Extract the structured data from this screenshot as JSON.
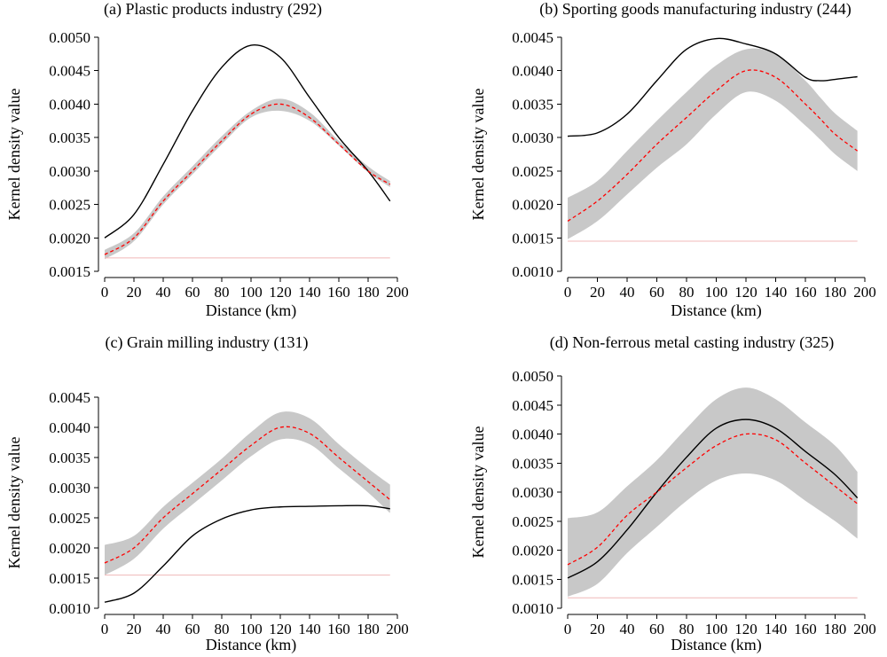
{
  "chart_data": [
    {
      "type": "line",
      "title": "(a) Plastic products industry (292)",
      "xlabel": "Distance (km)",
      "ylabel": "Kernel density value",
      "xlim": [
        0,
        200
      ],
      "ylim": [
        0.0015,
        0.005
      ],
      "xticks": [
        "0",
        "20",
        "40",
        "60",
        "80",
        "100",
        "120",
        "140",
        "160",
        "180",
        "200"
      ],
      "yticks": [
        "0.0015",
        "0.0020",
        "0.0025",
        "0.0030",
        "0.0035",
        "0.0040",
        "0.0045",
        "0.0050"
      ],
      "grid": false,
      "x": [
        0,
        20,
        40,
        60,
        80,
        100,
        120,
        140,
        160,
        180,
        195
      ],
      "series": [
        {
          "style": "solid",
          "color": "#000000",
          "values": [
            0.002,
            0.00235,
            0.0031,
            0.0039,
            0.00455,
            0.00488,
            0.0047,
            0.0041,
            0.0035,
            0.003,
            0.00255
          ]
        },
        {
          "style": "dashed",
          "color": "#ff0000",
          "values": [
            0.00175,
            0.002,
            0.00255,
            0.003,
            0.00345,
            0.00385,
            0.004,
            0.0038,
            0.0034,
            0.003,
            0.0028
          ]
        }
      ],
      "band": {
        "color": "#c8c8c8",
        "lower": [
          0.00168,
          0.00195,
          0.0025,
          0.00295,
          0.0034,
          0.0038,
          0.0039,
          0.00375,
          0.00338,
          0.00298,
          0.00276
        ],
        "upper": [
          0.00182,
          0.00207,
          0.00262,
          0.00307,
          0.00352,
          0.0039,
          0.00408,
          0.00388,
          0.00345,
          0.00307,
          0.00285
        ]
      },
      "baseline": {
        "color": "#f0b8b8",
        "value": 0.0017
      }
    },
    {
      "type": "line",
      "title": "(b) Sporting goods manufacturing industry (244)",
      "xlabel": "Distance (km)",
      "ylabel": "Kernel density value",
      "xlim": [
        0,
        200
      ],
      "ylim": [
        0.001,
        0.0045
      ],
      "xticks": [
        "0",
        "20",
        "40",
        "60",
        "80",
        "100",
        "120",
        "140",
        "160",
        "180",
        "200"
      ],
      "yticks": [
        "0.0010",
        "0.0015",
        "0.0020",
        "0.0025",
        "0.0030",
        "0.0035",
        "0.0040",
        "0.0045"
      ],
      "grid": false,
      "x": [
        0,
        20,
        40,
        60,
        80,
        100,
        120,
        140,
        160,
        170,
        180,
        195
      ],
      "series": [
        {
          "style": "solid",
          "color": "#000000",
          "values": [
            0.00302,
            0.00307,
            0.00335,
            0.00385,
            0.00432,
            0.00448,
            0.0044,
            0.00425,
            0.0039,
            0.00385,
            0.00387,
            0.00391
          ]
        },
        {
          "style": "dashed",
          "color": "#ff0000",
          "values": [
            0.00175,
            0.00205,
            0.00245,
            0.0029,
            0.0033,
            0.0037,
            0.004,
            0.0039,
            0.0035,
            0.00328,
            0.00305,
            0.0028
          ]
        }
      ],
      "band": {
        "color": "#c8c8c8",
        "lower": [
          0.00148,
          0.00175,
          0.00215,
          0.00255,
          0.0029,
          0.00335,
          0.00368,
          0.00355,
          0.00318,
          0.00297,
          0.00275,
          0.0025
        ]
      },
      "band_upper": [
        0.0021,
        0.00235,
        0.0028,
        0.00325,
        0.00368,
        0.00408,
        0.00432,
        0.00425,
        0.00385,
        0.0036,
        0.00336,
        0.0031
      ],
      "baseline": {
        "color": "#f0b8b8",
        "value": 0.00145
      }
    },
    {
      "type": "line",
      "title": "(c) Grain milling industry (131)",
      "xlabel": "Distance (km)",
      "ylabel": "Kernel density value",
      "xlim": [
        0,
        200
      ],
      "ylim": [
        0.001,
        0.0045
      ],
      "xticks": [
        "0",
        "20",
        "40",
        "60",
        "80",
        "100",
        "120",
        "140",
        "160",
        "180",
        "200"
      ],
      "yticks": [
        "0.0010",
        "0.0015",
        "0.0020",
        "0.0025",
        "0.0030",
        "0.0035",
        "0.0040",
        "0.0045"
      ],
      "grid": false,
      "x": [
        0,
        20,
        40,
        60,
        80,
        100,
        120,
        140,
        160,
        180,
        195
      ],
      "series": [
        {
          "style": "solid",
          "color": "#000000",
          "values": [
            0.0011,
            0.00125,
            0.0017,
            0.0022,
            0.00248,
            0.00263,
            0.00268,
            0.00269,
            0.0027,
            0.0027,
            0.00265
          ]
        },
        {
          "style": "dashed",
          "color": "#ff0000",
          "values": [
            0.00175,
            0.002,
            0.0025,
            0.0029,
            0.0033,
            0.0037,
            0.004,
            0.0039,
            0.0035,
            0.0031,
            0.0028
          ]
        }
      ],
      "band": {
        "color": "#c8c8c8",
        "lower": [
          0.00155,
          0.00182,
          0.00232,
          0.00272,
          0.00312,
          0.00352,
          0.0038,
          0.00372,
          0.00332,
          0.00292,
          0.00258
        ]
      },
      "band_upper": [
        0.00205,
        0.0022,
        0.00268,
        0.00308,
        0.00348,
        0.00392,
        0.00425,
        0.00415,
        0.00372,
        0.00332,
        0.00305
      ],
      "baseline": {
        "color": "#f0b8b8",
        "value": 0.00155
      }
    },
    {
      "type": "line",
      "title": "(d) Non-ferrous metal casting industry (325)",
      "xlabel": "Distance (km)",
      "ylabel": "Kernel density value",
      "xlim": [
        0,
        200
      ],
      "ylim": [
        0.001,
        0.005
      ],
      "xticks": [
        "0",
        "20",
        "40",
        "60",
        "80",
        "100",
        "120",
        "140",
        "160",
        "180",
        "200"
      ],
      "yticks": [
        "0.0010",
        "0.0015",
        "0.0020",
        "0.0025",
        "0.0030",
        "0.0035",
        "0.0040",
        "0.0045",
        "0.0050"
      ],
      "grid": false,
      "x": [
        0,
        20,
        40,
        60,
        80,
        100,
        120,
        140,
        160,
        180,
        195
      ],
      "series": [
        {
          "style": "solid",
          "color": "#000000",
          "values": [
            0.00152,
            0.0018,
            0.00235,
            0.003,
            0.0036,
            0.0041,
            0.00425,
            0.0041,
            0.0037,
            0.0033,
            0.0029
          ]
        },
        {
          "style": "dashed",
          "color": "#ff0000",
          "values": [
            0.00175,
            0.00205,
            0.0026,
            0.003,
            0.00342,
            0.0038,
            0.004,
            0.0039,
            0.0035,
            0.0031,
            0.0028
          ]
        }
      ],
      "band": {
        "color": "#c8c8c8",
        "lower": [
          0.0012,
          0.00142,
          0.00195,
          0.0024,
          0.00285,
          0.0032,
          0.00332,
          0.0032,
          0.00285,
          0.0025,
          0.0022
        ]
      },
      "band_upper": [
        0.00255,
        0.00265,
        0.0031,
        0.00355,
        0.0041,
        0.0046,
        0.0048,
        0.0046,
        0.0042,
        0.0038,
        0.00335
      ],
      "baseline": {
        "color": "#f0b8b8",
        "value": 0.00118
      }
    }
  ]
}
